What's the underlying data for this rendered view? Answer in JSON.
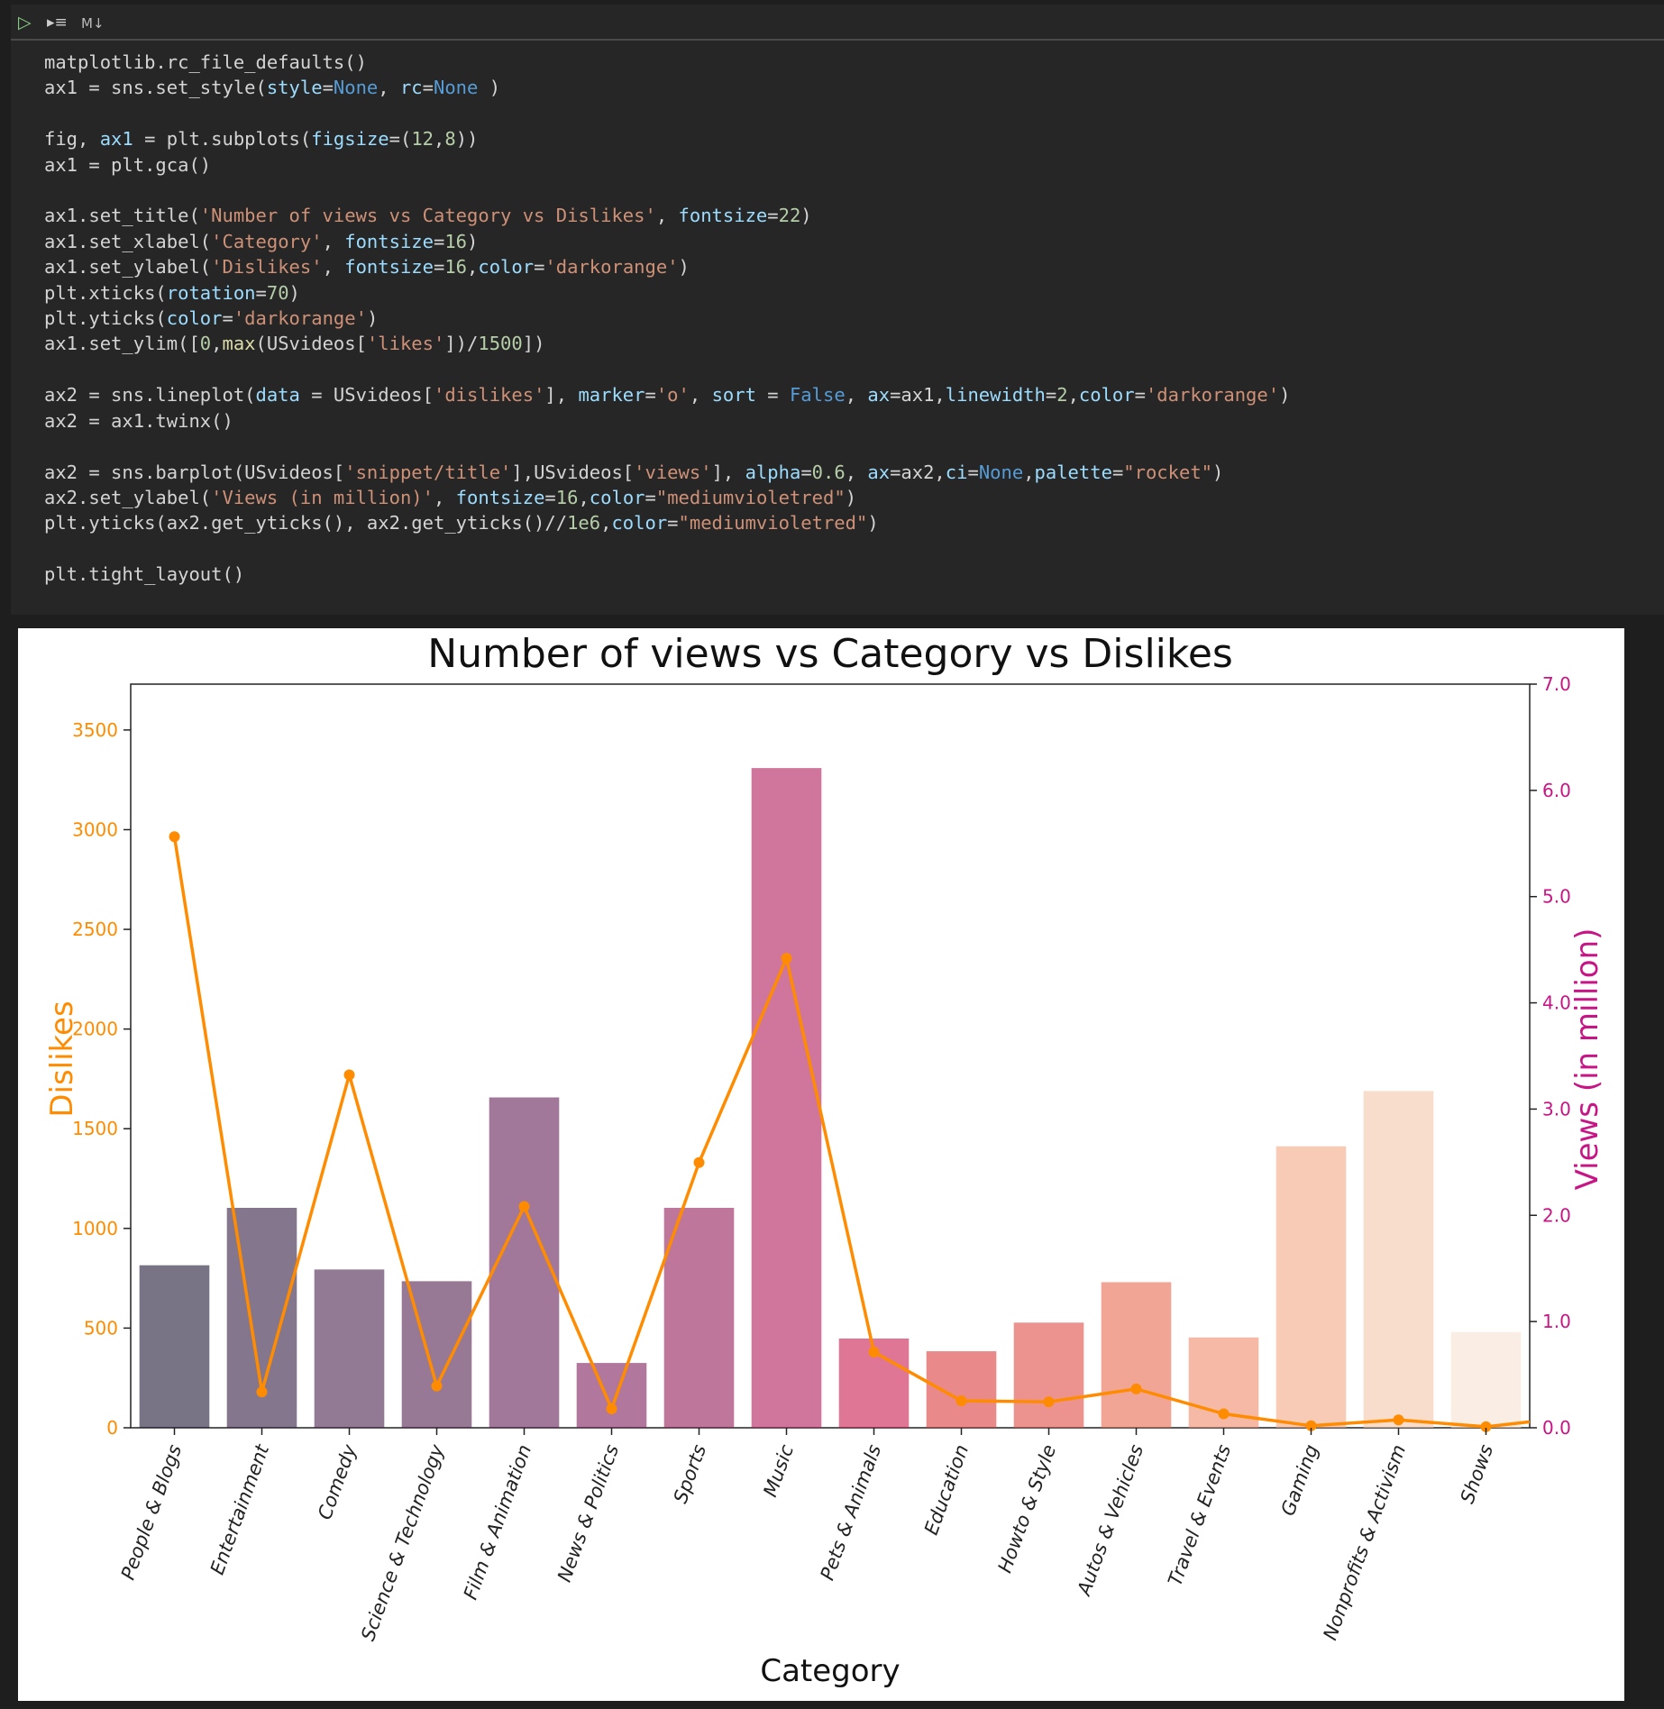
{
  "toolbar": {
    "run_icon": "▷",
    "run_below_icon": "▸≡",
    "cell_type_label": "M↓"
  },
  "code_lines": [
    "matplotlib.rc_file_defaults()",
    "ax1 = sns.set_style(style=None, rc=None )",
    "",
    "fig, ax1 = plt.subplots(figsize=(12,8))",
    "ax1 = plt.gca()",
    "",
    "ax1.set_title('Number of views vs Category vs Dislikes', fontsize=22)",
    "ax1.set_xlabel('Category', fontsize=16)",
    "ax1.set_ylabel('Dislikes', fontsize=16,color='darkorange')",
    "plt.xticks(rotation=70)",
    "plt.yticks(color='darkorange')",
    "ax1.set_ylim([0,max(USvideos['likes'])/1500])",
    "",
    "ax2 = sns.lineplot(data = USvideos['dislikes'], marker='o', sort = False, ax=ax1,linewidth=2,color='darkorange')",
    "ax2 = ax1.twinx()",
    "",
    "ax2 = sns.barplot(USvideos['snippet/title'],USvideos['views'], alpha=0.6, ax=ax2,ci=None,palette=\"rocket\")",
    "ax2.set_ylabel('Views (in million)', fontsize=16,color=\"mediumvioletred\")",
    "plt.yticks(ax2.get_yticks(), ax2.get_yticks()//1e6,color=\"mediumvioletred\")",
    "",
    "plt.tight_layout()"
  ],
  "chart_data": {
    "type": "bar",
    "title": "Number of views vs Category vs Dislikes",
    "xlabel": "Category",
    "ylabel_left": "Dislikes",
    "ylabel_right": "Views (in million)",
    "left_ylim": [
      0,
      3730
    ],
    "right_ylim": [
      0,
      7.0
    ],
    "left_ticks": [
      0,
      500,
      1000,
      1500,
      2000,
      2500,
      3000,
      3500
    ],
    "right_ticks": [
      0.0,
      1.0,
      2.0,
      3.0,
      4.0,
      5.0,
      6.0,
      7.0
    ],
    "left_color": "#ff8c00",
    "right_color": "#c71585",
    "categories": [
      "People & Blogs",
      "Entertainment",
      "Comedy",
      "Science & Technology",
      "Film & Animation",
      "News & Politics",
      "Sports",
      "Music",
      "Pets & Animals",
      "Education",
      "Howto & Style",
      "Autos & Vehicles",
      "Travel & Events",
      "Gaming",
      "Nonprofits & Activism",
      "Shows"
    ],
    "series": [
      {
        "name": "views",
        "axis": "right",
        "type": "bar",
        "alpha": 0.6,
        "values": [
          1.53,
          2.07,
          1.49,
          1.38,
          3.11,
          0.61,
          2.07,
          6.21,
          0.84,
          0.72,
          0.99,
          1.37,
          0.85,
          2.65,
          3.17,
          0.9
        ],
        "colors": [
          "#1f1733",
          "#321b3f",
          "#4a1f4d",
          "#521f4f",
          "#621d56",
          "#7d1c5a",
          "#951a58",
          "#b01b5a",
          "#cb1b4f",
          "#da3a3a",
          "#e04b45",
          "#e8694f",
          "#ee8a6a",
          "#f3a987",
          "#f5c7aa",
          "#f6e1d1"
        ]
      },
      {
        "name": "dislikes",
        "axis": "left",
        "type": "line",
        "color": "#ff8c00",
        "values": [
          2965,
          180,
          1770,
          210,
          1110,
          95,
          1330,
          2355,
          380,
          135,
          130,
          195,
          70,
          10,
          40,
          5
        ],
        "end_value": 30
      }
    ],
    "grid": false,
    "legend": "none"
  }
}
